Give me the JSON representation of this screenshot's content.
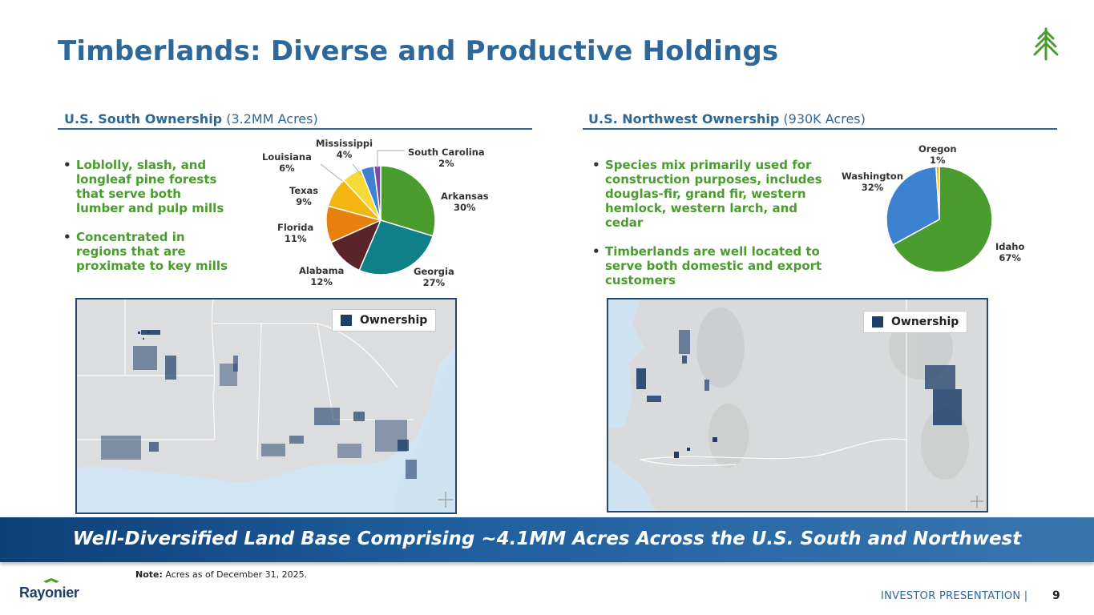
{
  "title": "Timberlands: Diverse and Productive Holdings",
  "south": {
    "heading_bold": "U.S. South Ownership",
    "heading_sub": "(3.2MM Acres)",
    "bullets": [
      "Loblolly, slash, and longleaf pine forests that serve both lumber and pulp mills",
      "Concentrated in regions that are proximate to key mills"
    ],
    "legend": "Ownership"
  },
  "northwest": {
    "heading_bold": "U.S. Northwest Ownership",
    "heading_sub": "(930K Acres)",
    "bullets": [
      "Species mix primarily used for construction purposes, includes douglas-fir, grand fir, western hemlock, western larch, and cedar",
      "Timberlands are well located to serve both domestic and export customers"
    ],
    "legend": "Ownership"
  },
  "chart_data": [
    {
      "type": "pie",
      "title": "",
      "slices": [
        {
          "label": "Arkansas",
          "value": 30,
          "pct_label": "30%",
          "color": "#4a9c2e"
        },
        {
          "label": "Georgia",
          "value": 27,
          "pct_label": "27%",
          "color": "#0f7f88"
        },
        {
          "label": "Alabama",
          "value": 12,
          "pct_label": "12%",
          "color": "#5a2528"
        },
        {
          "label": "Florida",
          "value": 11,
          "pct_label": "11%",
          "color": "#e8800c"
        },
        {
          "label": "Texas",
          "value": 9,
          "pct_label": "9%",
          "color": "#f3b510"
        },
        {
          "label": "Louisiana",
          "value": 6,
          "pct_label": "6%",
          "color": "#f7d938"
        },
        {
          "label": "Mississippi",
          "value": 4,
          "pct_label": "4%",
          "color": "#3d82d0"
        },
        {
          "label": "South Carolina",
          "value": 2,
          "pct_label": "2%",
          "color": "#7c4aa3"
        }
      ]
    },
    {
      "type": "pie",
      "title": "",
      "slices": [
        {
          "label": "Idaho",
          "value": 67,
          "pct_label": "67%",
          "color": "#4a9c2e"
        },
        {
          "label": "Washington",
          "value": 32,
          "pct_label": "32%",
          "color": "#3d82d0"
        },
        {
          "label": "Oregon",
          "value": 1,
          "pct_label": "1%",
          "color": "#f3b510"
        }
      ]
    }
  ],
  "banner": "Well-Diversified Land Base Comprising ~4.1MM Acres Across the U.S. South and Northwest",
  "note": {
    "bold": "Note:",
    "text": " Acres as of December 31, 2025."
  },
  "footer": {
    "label": "INVESTOR PRESENTATION |",
    "page": "9"
  },
  "brand": {
    "name": "Rayonier",
    "icon": "tree-icon"
  },
  "colors": {
    "accent_blue": "#2e6799",
    "accent_green": "#4a9c2e",
    "ownership": "#1f3f6a"
  }
}
